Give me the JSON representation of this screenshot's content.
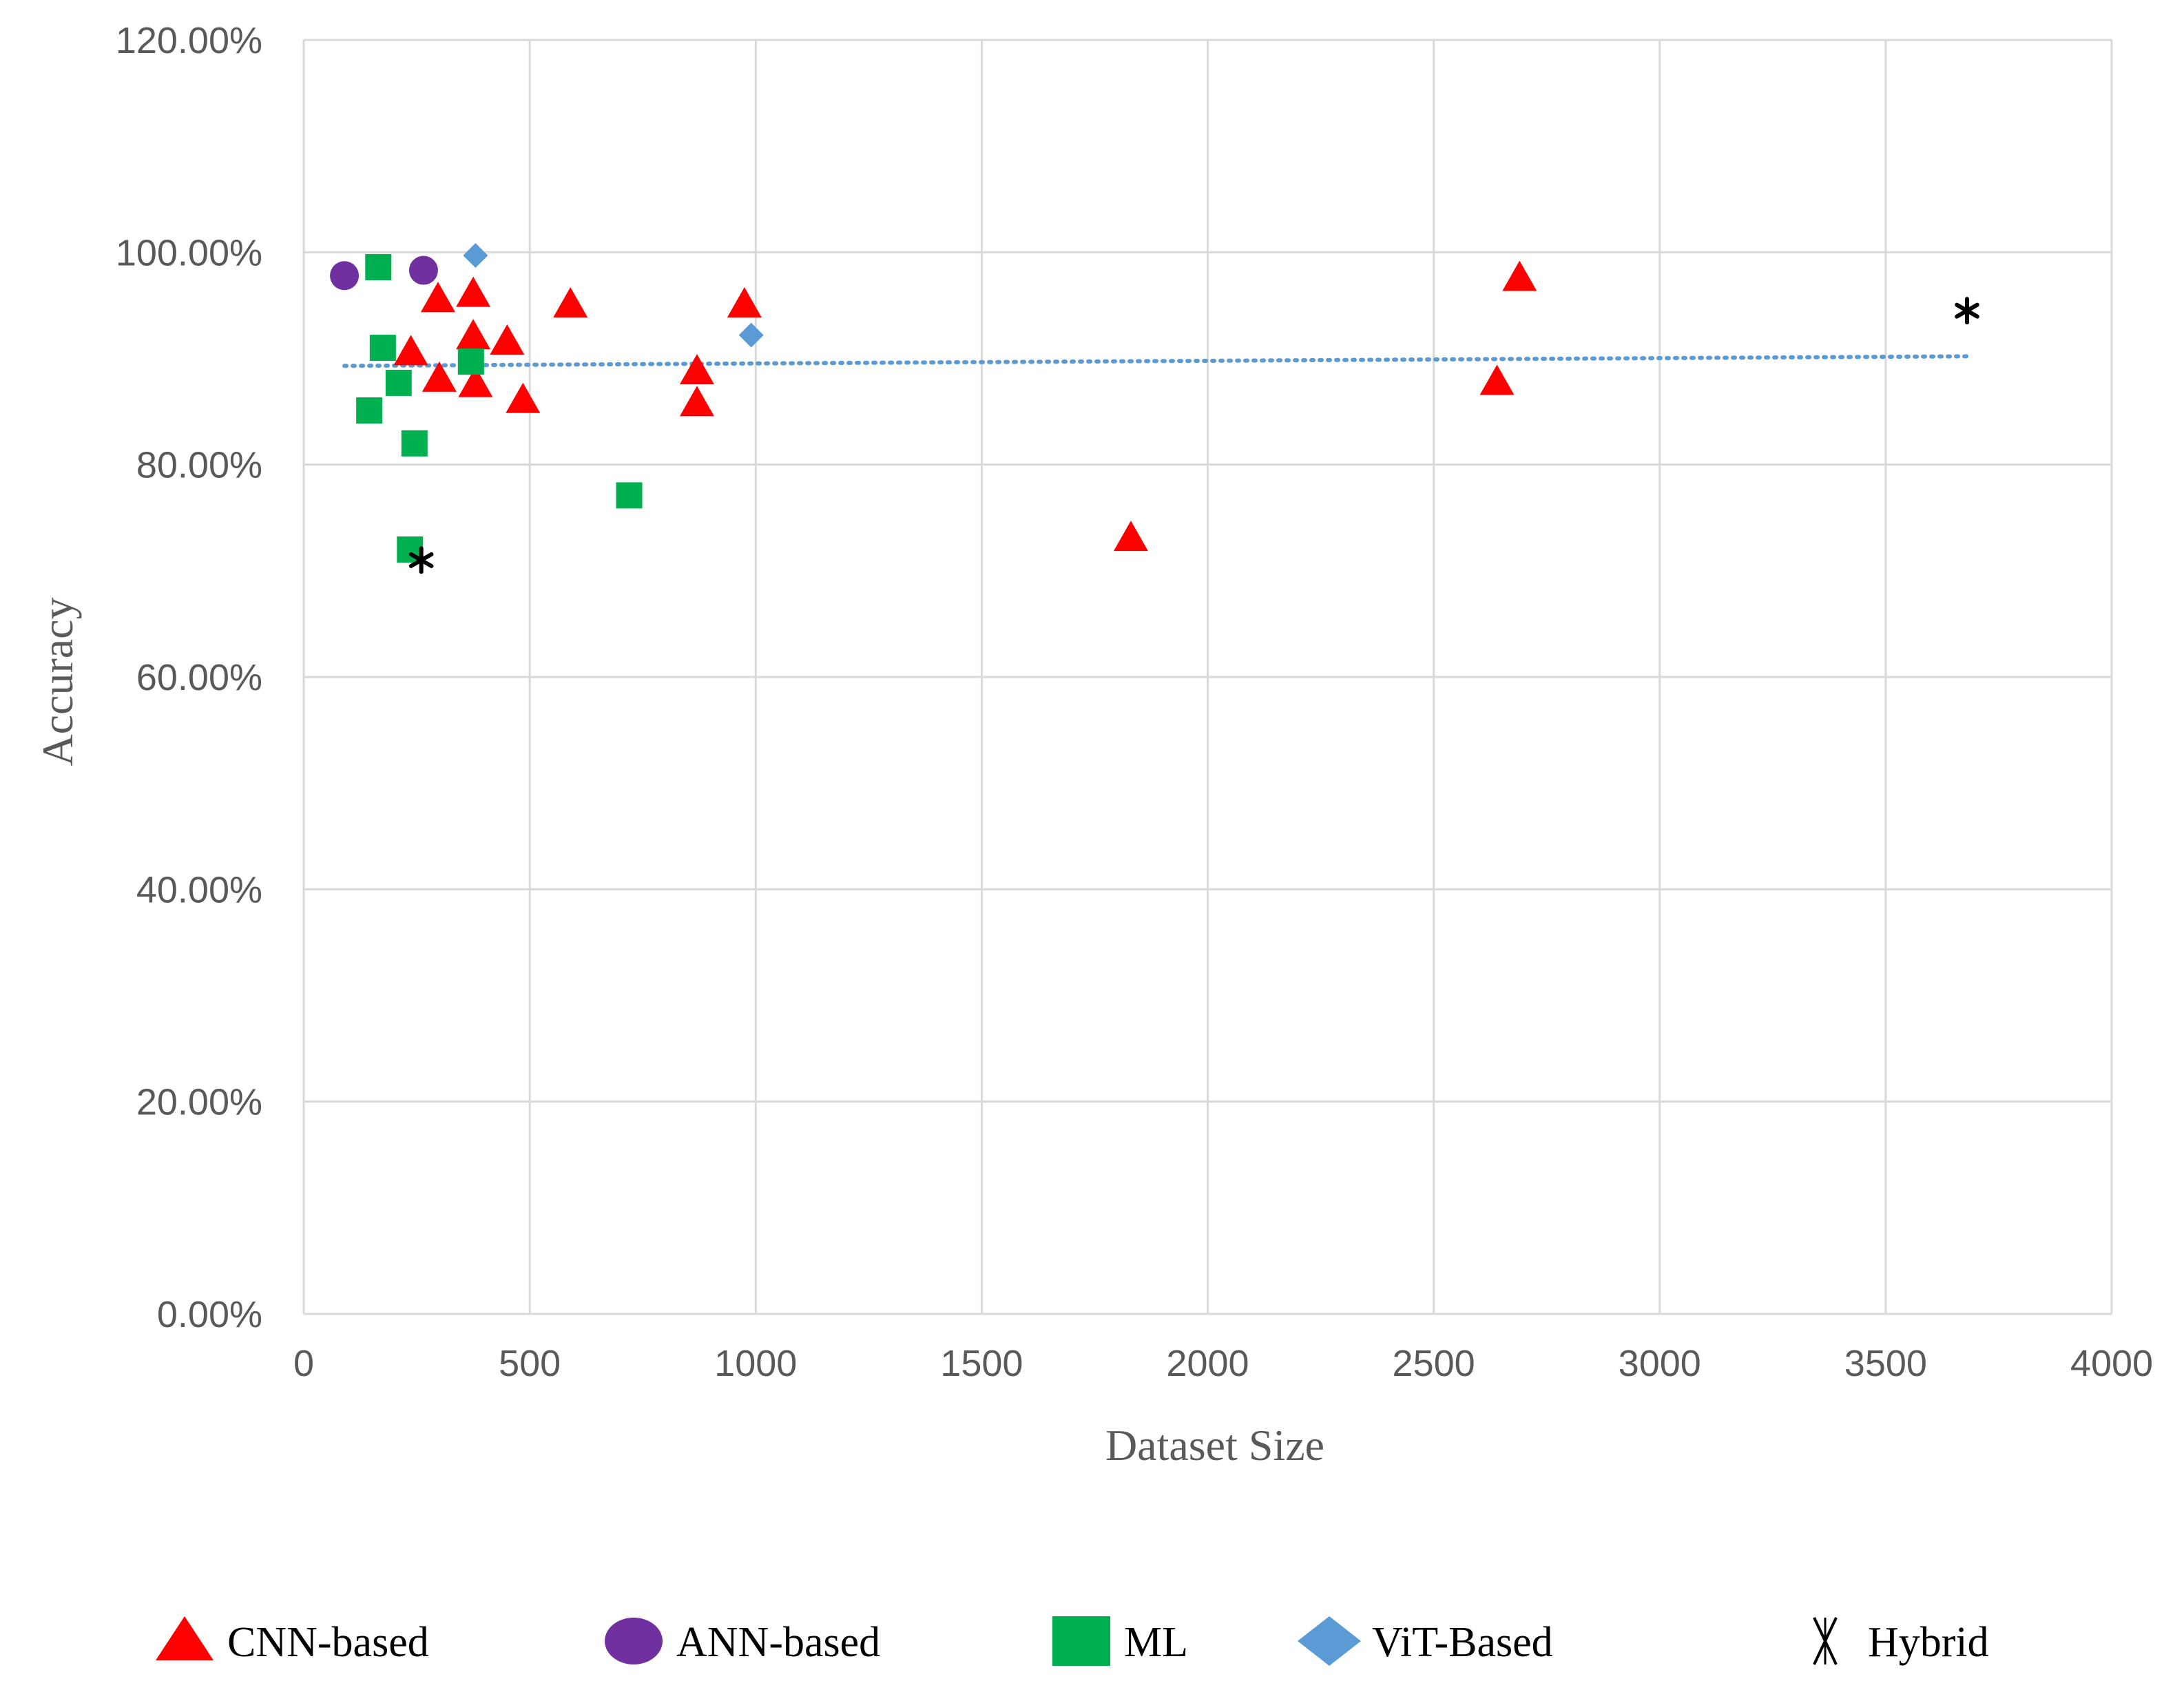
{
  "chart_data": {
    "type": "scatter",
    "title": "",
    "xlabel": "Dataset Size",
    "ylabel": "Accuracy",
    "xlim": [
      0,
      4000
    ],
    "ylim": [
      0,
      1.2
    ],
    "x_ticks": [
      {
        "value": 0,
        "label": "0"
      },
      {
        "value": 500,
        "label": "500"
      },
      {
        "value": 1000,
        "label": "1000"
      },
      {
        "value": 1500,
        "label": "1500"
      },
      {
        "value": 2000,
        "label": "2000"
      },
      {
        "value": 2500,
        "label": "2500"
      },
      {
        "value": 3000,
        "label": "3000"
      },
      {
        "value": 3500,
        "label": "3500"
      },
      {
        "value": 4000,
        "label": "4000"
      }
    ],
    "y_ticks": [
      {
        "value": 0,
        "label": "0.00%"
      },
      {
        "value": 0.2,
        "label": "20.00%"
      },
      {
        "value": 0.4,
        "label": "40.00%"
      },
      {
        "value": 0.6,
        "label": "60.00%"
      },
      {
        "value": 0.8,
        "label": "80.00%"
      },
      {
        "value": 1.0,
        "label": "100.00%"
      },
      {
        "value": 1.2,
        "label": "120.00%"
      }
    ],
    "grid": true,
    "legend_position": "bottom",
    "series": [
      {
        "name": "CNN-based",
        "marker": "triangle",
        "color": "#FF0000",
        "points": [
          [
            237,
            0.905
          ],
          [
            297,
            0.955
          ],
          [
            300,
            0.88
          ],
          [
            375,
            0.96
          ],
          [
            375,
            0.92
          ],
          [
            380,
            0.875
          ],
          [
            450,
            0.915
          ],
          [
            485,
            0.86
          ],
          [
            590,
            0.95
          ],
          [
            870,
            0.887
          ],
          [
            870,
            0.857
          ],
          [
            975,
            0.95
          ],
          [
            1830,
            0.73
          ],
          [
            2640,
            0.877
          ],
          [
            2690,
            0.975
          ]
        ]
      },
      {
        "name": "ANN-based",
        "marker": "circle",
        "color": "#7030A0",
        "points": [
          [
            90,
            0.978
          ],
          [
            265,
            0.983
          ]
        ]
      },
      {
        "name": "ML",
        "marker": "square",
        "color": "#00B050",
        "points": [
          [
            165,
            0.986
          ],
          [
            175,
            0.91
          ],
          [
            210,
            0.877
          ],
          [
            145,
            0.851
          ],
          [
            370,
            0.897
          ],
          [
            245,
            0.82
          ],
          [
            235,
            0.72
          ],
          [
            720,
            0.771
          ]
        ]
      },
      {
        "name": "ViT-Based",
        "marker": "diamond",
        "color": "#5B9BD5",
        "points": [
          [
            380,
            0.997
          ],
          [
            990,
            0.922
          ]
        ]
      },
      {
        "name": "Hybrid",
        "marker": "asterisk",
        "color": "#000000",
        "points": [
          [
            260,
            0.71
          ],
          [
            3680,
            0.945
          ]
        ]
      }
    ],
    "trendline": {
      "type": "linear",
      "style": "dotted",
      "color": "#5B9BD5",
      "x_range": [
        90,
        3680
      ],
      "y_at_start": 0.893,
      "y_at_end": 0.902
    }
  }
}
